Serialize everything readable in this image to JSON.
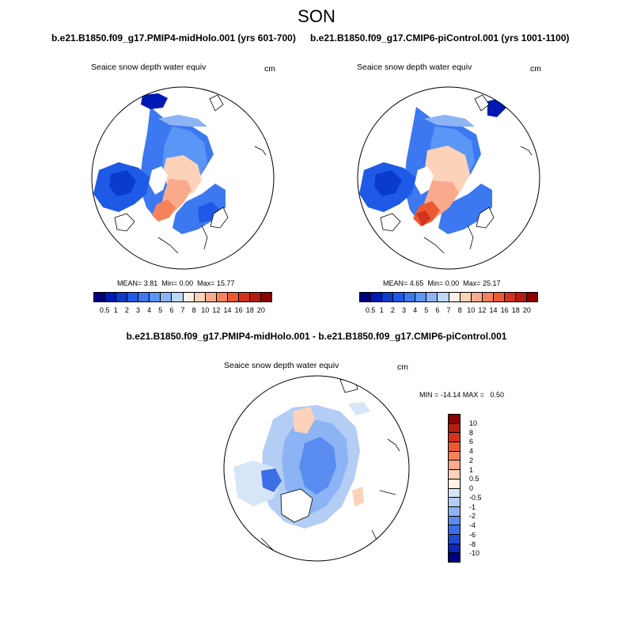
{
  "figure": {
    "season": "SON",
    "panels": [
      {
        "title": "b.e21.B1850.f09_g17.PMIP4-midHolo.001 (yrs 601-700)",
        "variable": "Seaice snow depth water equiv",
        "units": "cm",
        "stats": {
          "mean_label": "MEAN=",
          "mean": "3.81",
          "min_label": "Min=",
          "min": "0.00",
          "max_label": "Max=",
          "max": "15.77"
        }
      },
      {
        "title": "b.e21.B1850.f09_g17.CMIP6-piControl.001 (yrs 1001-1100)",
        "variable": "Seaice snow depth water equiv",
        "units": "cm",
        "stats": {
          "mean_label": "MEAN=",
          "mean": "4.65",
          "min_label": "Min=",
          "min": "0.00",
          "max_label": "Max=",
          "max": "25.17"
        }
      }
    ],
    "diff_panel": {
      "title": "b.e21.B1850.f09_g17.PMIP4-midHolo.001 - b.e21.B1850.f09_g17.CMIP6-piControl.001",
      "variable": "Seaice snow depth water equiv",
      "units": "cm",
      "minmax": "MIN = -14.14 MAX =   0.50"
    },
    "colorbar_levels": [
      "0.5",
      "1",
      "2",
      "3",
      "4",
      "5",
      "6",
      "7",
      "8",
      "10",
      "12",
      "14",
      "16",
      "18",
      "20"
    ],
    "colorbar_colors": [
      "#00007f",
      "#0019b4",
      "#0a3ccc",
      "#1e5ae6",
      "#3c78f0",
      "#5a96f5",
      "#8cb4f5",
      "#bed7f5",
      "#fff0e6",
      "#fcd2b9",
      "#faaa8c",
      "#f5825a",
      "#eb5a32",
      "#d2321e",
      "#b41e0f",
      "#8c0000"
    ],
    "diff_colorbar_levels": [
      "10",
      "8",
      "6",
      "4",
      "2",
      "1",
      "0.5",
      "0",
      "-0.5",
      "-1",
      "-2",
      "-4",
      "-6",
      "-8",
      "-10"
    ],
    "diff_colorbar_colors": [
      "#8c0000",
      "#b41e0f",
      "#d2321e",
      "#eb5a32",
      "#f5825a",
      "#faaa8c",
      "#fcd2b9",
      "#fff0e6",
      "#d7e6f7",
      "#b4cdf5",
      "#8cb4f5",
      "#5a8cf0",
      "#3c6ee6",
      "#1e4bd2",
      "#0a28b4",
      "#00007f"
    ]
  }
}
